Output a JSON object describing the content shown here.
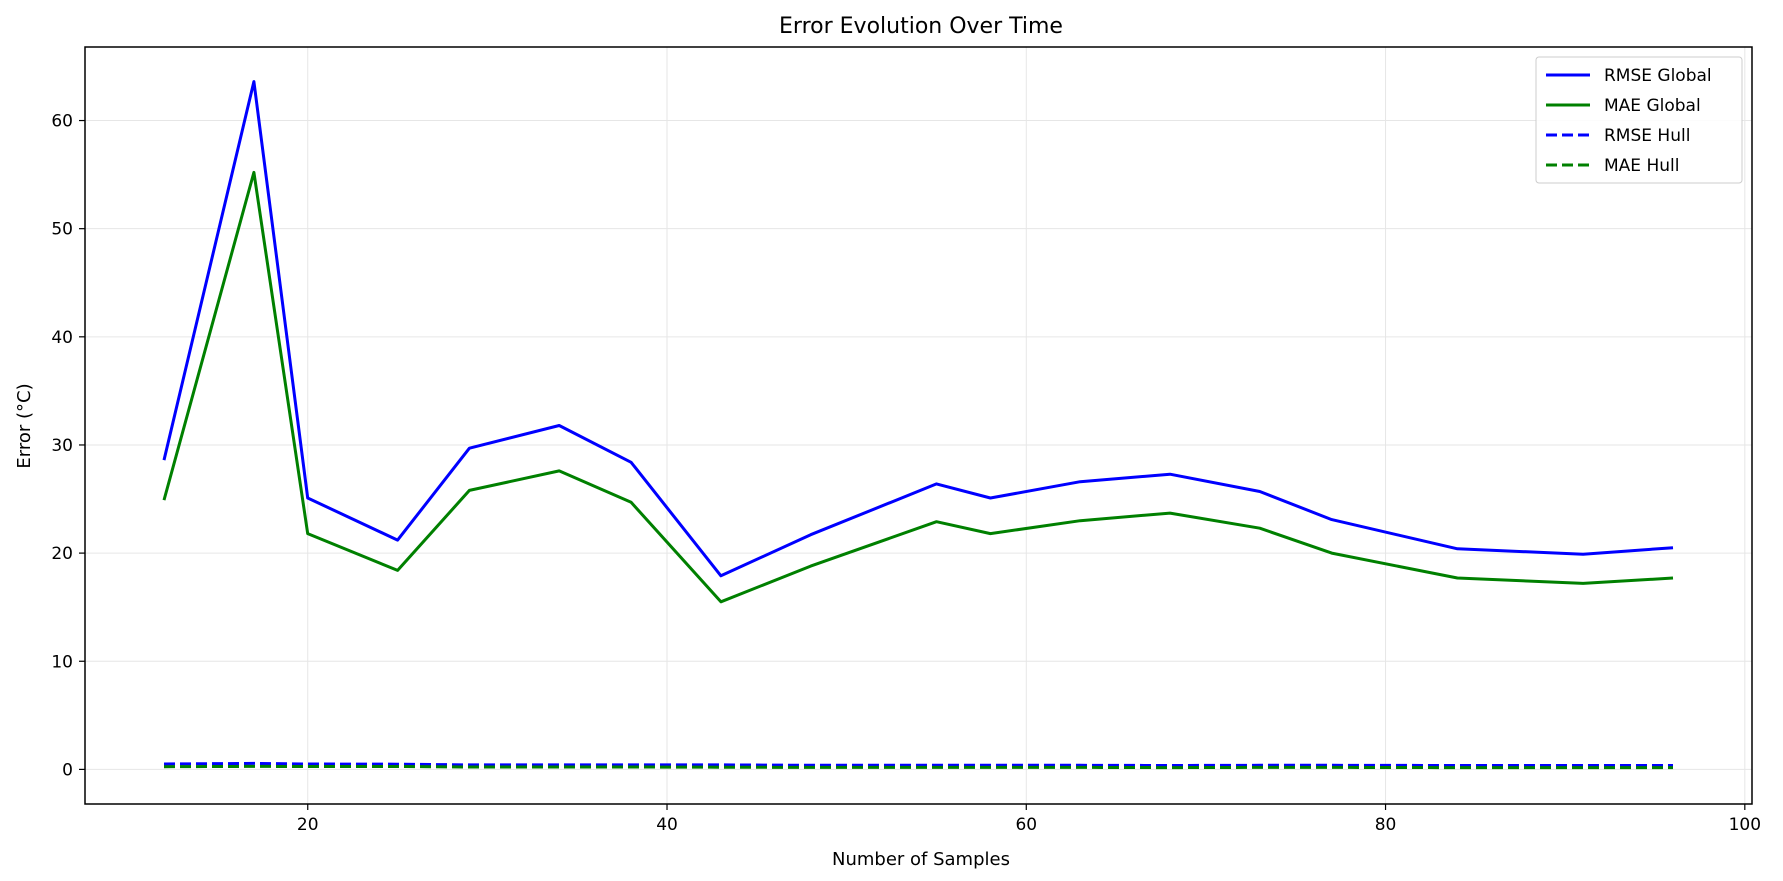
{
  "chart_data": {
    "type": "line",
    "title": "Error Evolution Over Time",
    "xlabel": "Number of Samples",
    "ylabel": "Error (°C)",
    "xlim": [
      7.6,
      100.4
    ],
    "ylim": [
      -3.2,
      66.8
    ],
    "xticks": [
      20,
      40,
      60,
      80,
      100
    ],
    "yticks": [
      0,
      10,
      20,
      30,
      40,
      50,
      60
    ],
    "grid": true,
    "legend_position": "top-right",
    "x": [
      12,
      17,
      20,
      25,
      29,
      34,
      38,
      43,
      48,
      55,
      58,
      63,
      68,
      73,
      77,
      84,
      91,
      96
    ],
    "series": [
      {
        "name": "RMSE Global",
        "color": "#0000ff",
        "dash": "solid",
        "values": [
          28.6,
          63.6,
          25.1,
          21.2,
          29.7,
          31.8,
          28.4,
          17.9,
          21.7,
          26.4,
          25.1,
          26.6,
          27.3,
          25.7,
          23.1,
          20.4,
          19.9,
          20.5
        ]
      },
      {
        "name": "MAE Global",
        "color": "#008000",
        "dash": "solid",
        "values": [
          24.9,
          55.2,
          21.8,
          18.4,
          25.8,
          27.6,
          24.7,
          15.5,
          18.8,
          22.9,
          21.8,
          23.0,
          23.7,
          22.3,
          20.0,
          17.7,
          17.2,
          17.7
        ]
      },
      {
        "name": "RMSE Hull",
        "color": "#0000ff",
        "dash": "dashed",
        "values": [
          0.5,
          0.55,
          0.5,
          0.48,
          0.42,
          0.42,
          0.42,
          0.42,
          0.38,
          0.38,
          0.38,
          0.38,
          0.36,
          0.38,
          0.38,
          0.36,
          0.36,
          0.36
        ]
      },
      {
        "name": "MAE Hull",
        "color": "#008000",
        "dash": "dashed",
        "values": [
          0.25,
          0.28,
          0.27,
          0.27,
          0.22,
          0.22,
          0.22,
          0.2,
          0.18,
          0.18,
          0.18,
          0.18,
          0.17,
          0.18,
          0.18,
          0.17,
          0.17,
          0.17
        ]
      }
    ]
  }
}
